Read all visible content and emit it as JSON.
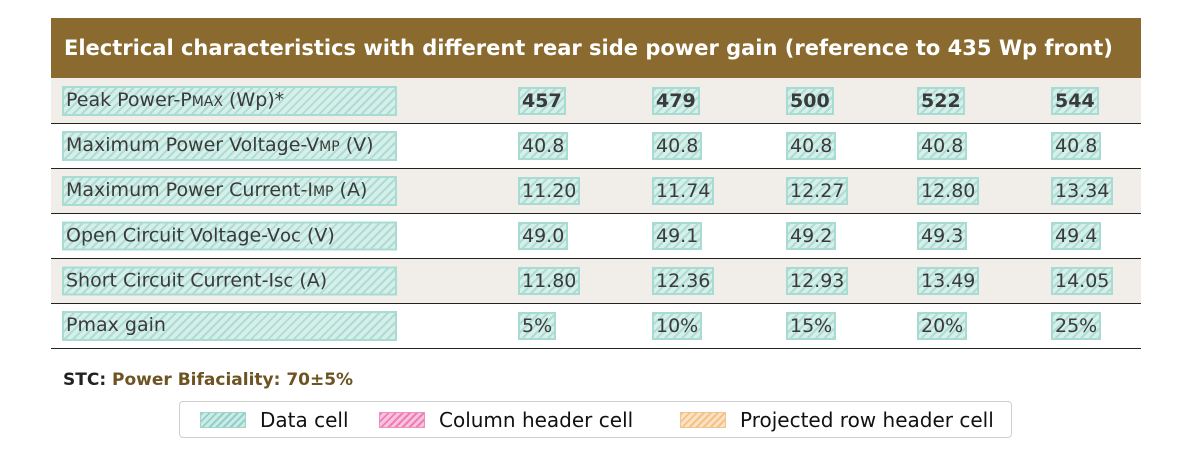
{
  "table": {
    "title": "Electrical characteristics with different rear side power gain (reference to 435 Wp front)",
    "rows": [
      {
        "label_pre": "Peak Power-P",
        "label_sub": "MAX",
        "label_post": " (Wp)*",
        "values": [
          "457",
          "479",
          "500",
          "522",
          "544"
        ]
      },
      {
        "label_pre": "Maximum Power Voltage-V",
        "label_sub": "MP",
        "label_post": " (V)",
        "values": [
          "40.8",
          "40.8",
          "40.8",
          "40.8",
          "40.8"
        ]
      },
      {
        "label_pre": "Maximum Power Current-I",
        "label_sub": "MP",
        "label_post": " (A)",
        "values": [
          "11.20",
          "11.74",
          "12.27",
          "12.80",
          "13.34"
        ]
      },
      {
        "label_pre": "Open Circuit Voltage-V",
        "label_sub": "OC",
        "label_post": " (V)",
        "values": [
          "49.0",
          "49.1",
          "49.2",
          "49.3",
          "49.4"
        ]
      },
      {
        "label_pre": "Short Circuit Current-I",
        "label_sub": "SC",
        "label_post": " (A)",
        "values": [
          "11.80",
          "12.36",
          "12.93",
          "13.49",
          "14.05"
        ]
      },
      {
        "label_pre": "Pmax gain",
        "label_sub": "",
        "label_post": "",
        "values": [
          "5%",
          "10%",
          "15%",
          "20%",
          "25%"
        ]
      }
    ]
  },
  "footnote": {
    "label": "STC:",
    "value": "Power Bifaciality: 70±5%"
  },
  "legend": {
    "items": [
      {
        "label": "Data cell"
      },
      {
        "label": "Column header cell"
      },
      {
        "label": "Projected row header cell"
      }
    ]
  },
  "colors": {
    "title_bar": "#8a6a2e",
    "alt_row": "#f1eee9",
    "data_hatch": "#a8dcd3",
    "col_header_hatch": "#ee8fc0",
    "row_header_hatch": "#f2c48f"
  }
}
